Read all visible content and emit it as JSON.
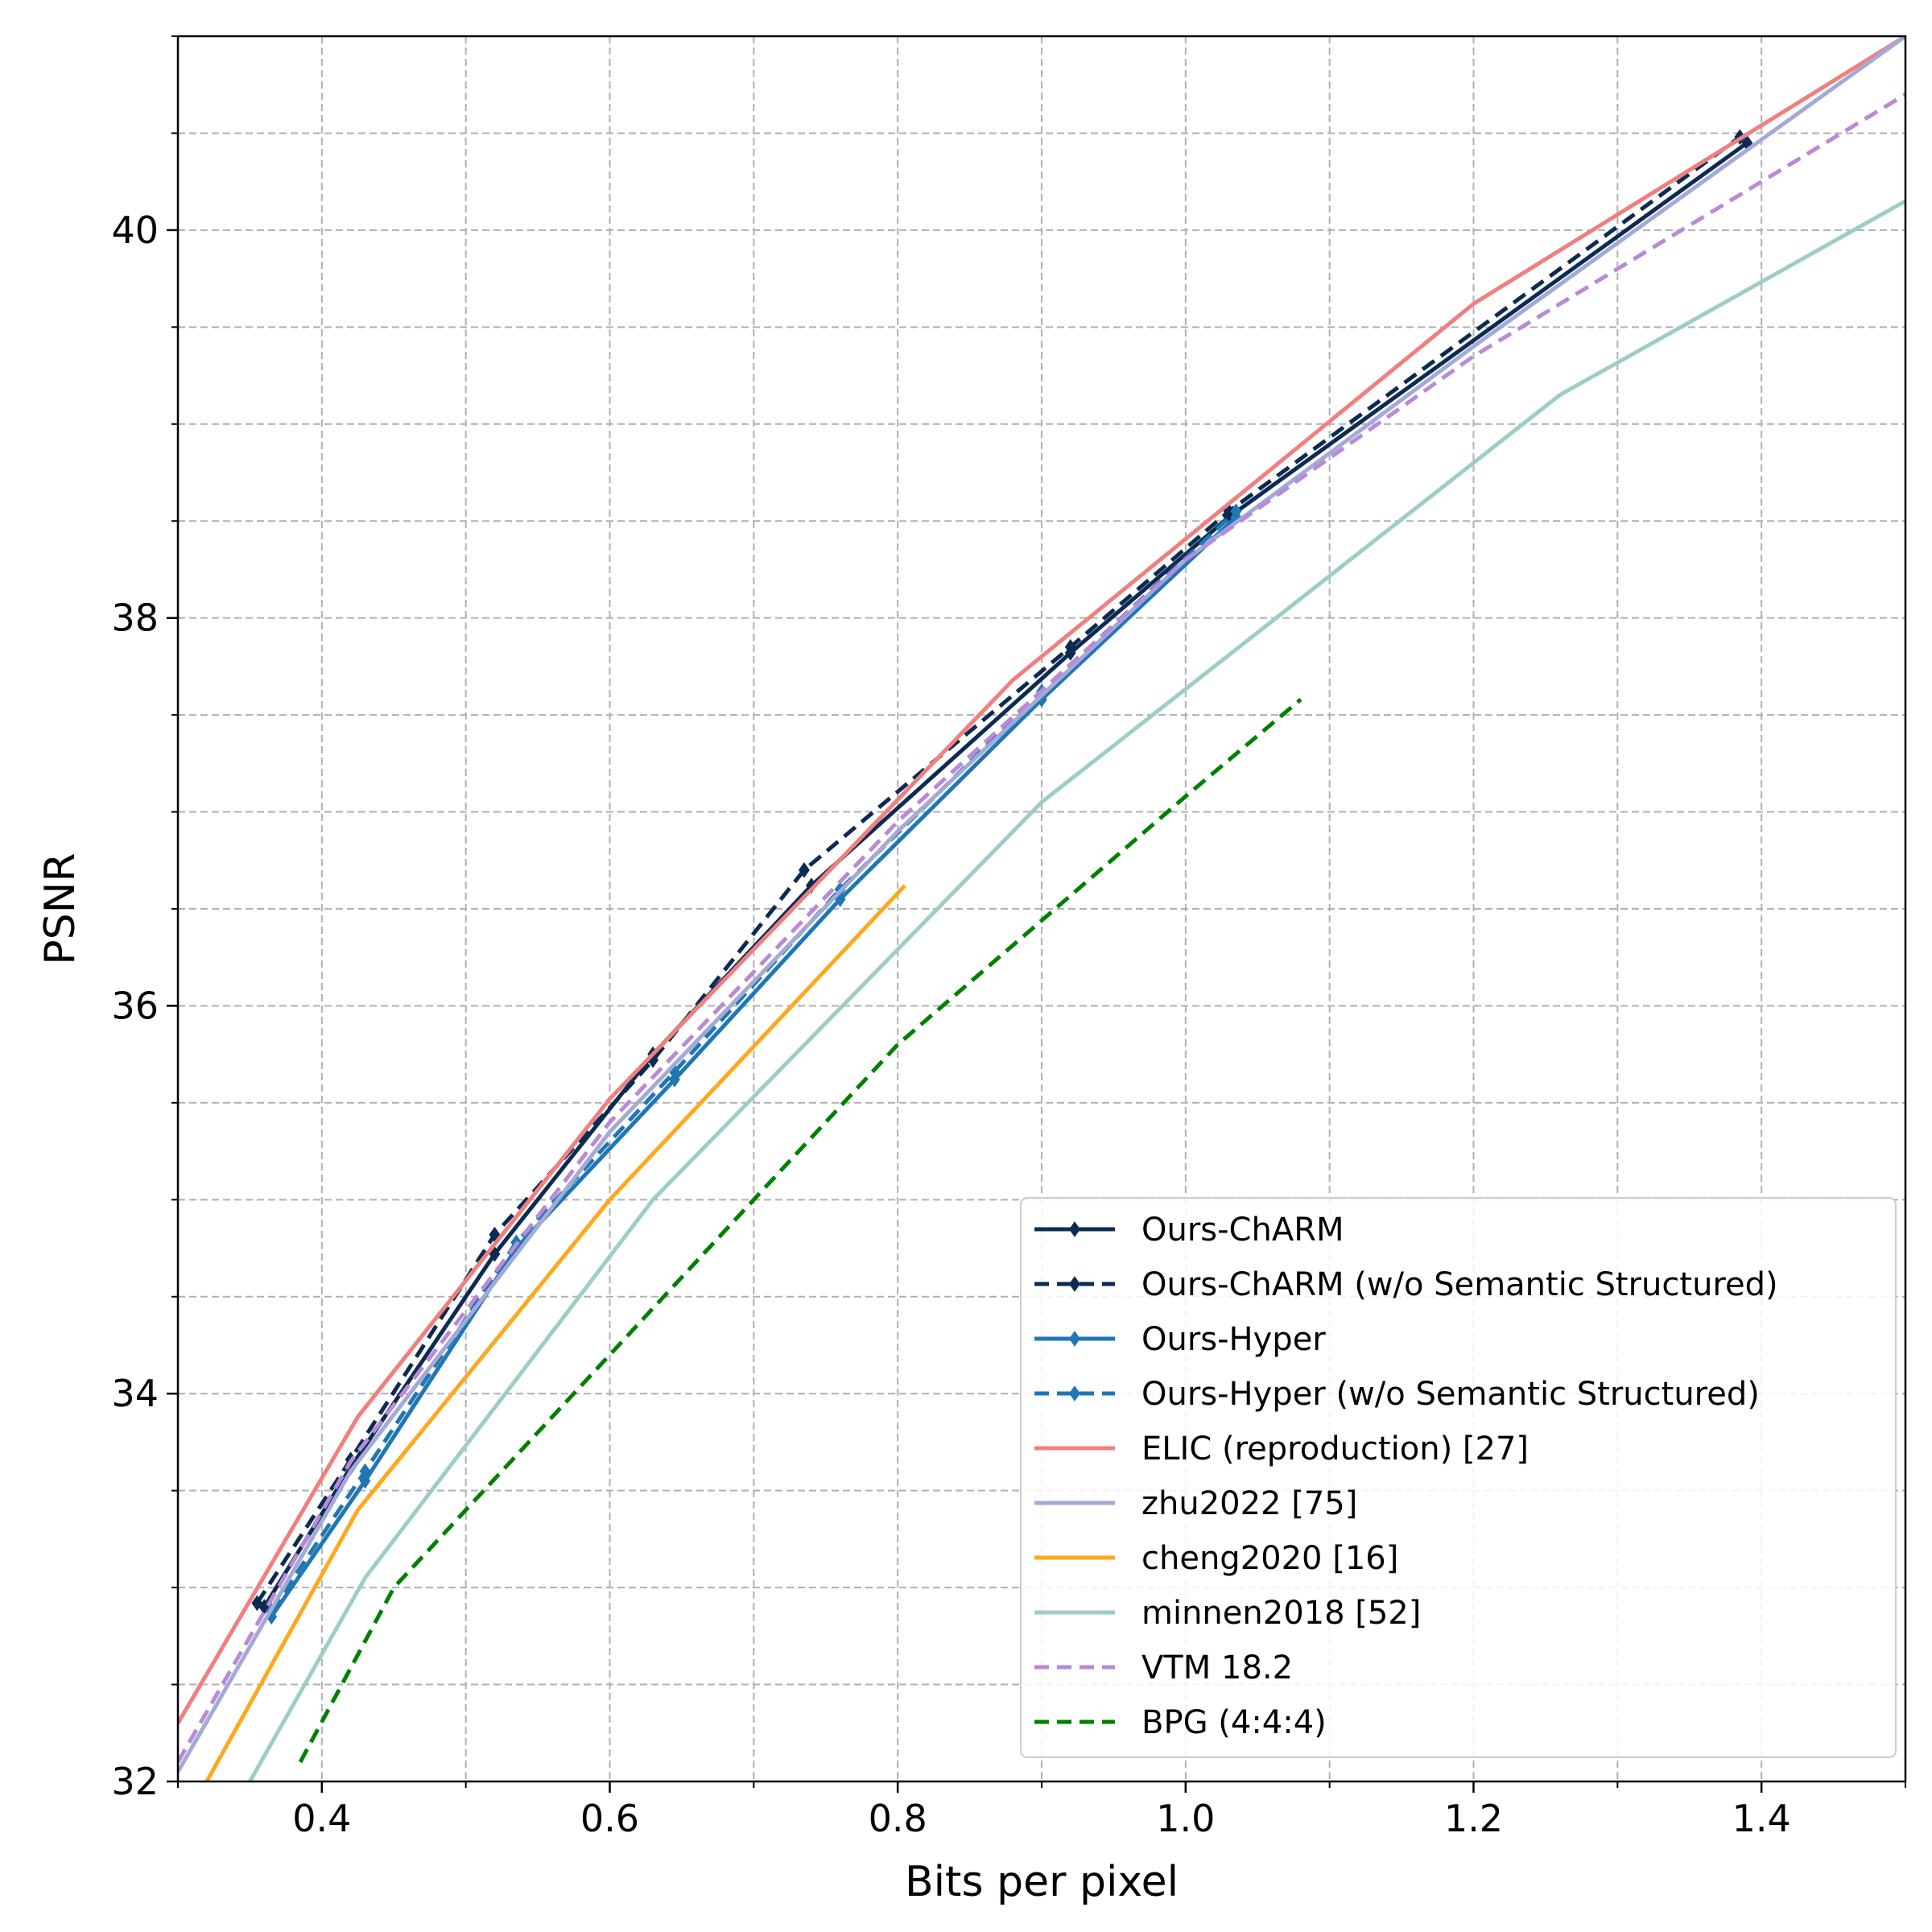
{
  "chart_data": {
    "type": "line",
    "title": "",
    "xlabel": "Bits per pixel",
    "ylabel": "PSNR",
    "xlim": [
      0.3,
      1.5
    ],
    "ylim": [
      32,
      41
    ],
    "xticks": [
      0.4,
      0.6,
      0.8,
      1.0,
      1.2,
      1.4
    ],
    "xtick_labels": [
      "0.4",
      "0.6",
      "0.8",
      "1.0",
      "1.2",
      "1.4"
    ],
    "yticks": [
      32,
      34,
      36,
      38,
      40
    ],
    "ytick_labels": [
      "32",
      "34",
      "36",
      "38",
      "40"
    ],
    "x_minor_step": 0.1,
    "y_minor_step": 0.5,
    "grid": true,
    "legend_position": "lower-right",
    "series": [
      {
        "name": "Ours-ChARM",
        "color": "#0d2b52",
        "style": "solid",
        "marker": "diamond",
        "x": [
          0.36,
          0.42,
          0.52,
          0.63,
          0.74,
          0.92,
          1.03,
          1.39
        ],
        "y": [
          32.9,
          33.62,
          34.72,
          35.75,
          36.62,
          37.82,
          38.52,
          40.45
        ]
      },
      {
        "name": "Ours-ChARM (w/o Semantic Structured)",
        "color": "#0d2b52",
        "style": "dashed",
        "marker": "diamond",
        "x": [
          0.355,
          0.42,
          0.52,
          0.63,
          0.735,
          0.92,
          1.03,
          1.385
        ],
        "y": [
          32.92,
          33.66,
          34.82,
          35.72,
          36.7,
          37.85,
          38.55,
          40.48
        ]
      },
      {
        "name": "Ours-Hyper",
        "color": "#1f77b4",
        "style": "solid",
        "marker": "diamond",
        "x": [
          0.365,
          0.43,
          0.535,
          0.645,
          0.76,
          0.9,
          1.035
        ],
        "y": [
          32.85,
          33.55,
          34.75,
          35.62,
          36.55,
          37.58,
          38.52
        ]
      },
      {
        "name": "Ours-Hyper (w/o Semantic Structured)",
        "color": "#1f77b4",
        "style": "dashed",
        "marker": "diamond",
        "x": [
          0.365,
          0.43,
          0.535,
          0.645,
          0.76,
          0.9,
          1.035
        ],
        "y": [
          32.88,
          33.6,
          34.78,
          35.66,
          36.6,
          37.62,
          38.55
        ]
      },
      {
        "name": "ELIC (reproduction) [27]",
        "color": "#f07f7f",
        "style": "solid",
        "marker": "",
        "x": [
          0.3,
          0.425,
          0.6,
          0.88,
          1.2,
          1.5
        ],
        "y": [
          32.3,
          33.88,
          35.52,
          37.68,
          39.62,
          41.0
        ]
      },
      {
        "name": "zhu2022 [75]",
        "color": "#a3aad6",
        "style": "solid",
        "marker": "",
        "x": [
          0.3,
          0.42,
          0.6,
          0.8,
          1.0,
          1.2,
          1.5
        ],
        "y": [
          32.05,
          33.6,
          35.35,
          36.9,
          38.3,
          39.4,
          41.0
        ]
      },
      {
        "name": "cheng2020 [16]",
        "color": "#ffa81f",
        "style": "solid",
        "marker": "",
        "x": [
          0.32,
          0.425,
          0.6,
          0.805
        ],
        "y": [
          32.0,
          33.4,
          35.0,
          36.62
        ]
      },
      {
        "name": "minnen2018 [52]",
        "color": "#9ecdc9",
        "style": "solid",
        "marker": "",
        "x": [
          0.35,
          0.43,
          0.63,
          0.9,
          1.26,
          1.5
        ],
        "y": [
          32.0,
          33.05,
          35.0,
          37.05,
          39.15,
          40.15
        ]
      },
      {
        "name": "VTM 18.2",
        "color": "#b98ad8",
        "style": "dashed",
        "marker": "",
        "x": [
          0.3,
          0.42,
          0.6,
          0.8,
          1.0,
          1.2,
          1.5
        ],
        "y": [
          32.1,
          33.65,
          35.4,
          36.95,
          38.3,
          39.35,
          40.7
        ]
      },
      {
        "name": "BPG (4:4:4)",
        "color": "#008000",
        "style": "dashed",
        "marker": "",
        "x": [
          0.385,
          0.45,
          0.6,
          0.8,
          1.0,
          1.08
        ],
        "y": [
          32.1,
          33.0,
          34.2,
          35.8,
          37.08,
          37.58
        ]
      }
    ]
  }
}
